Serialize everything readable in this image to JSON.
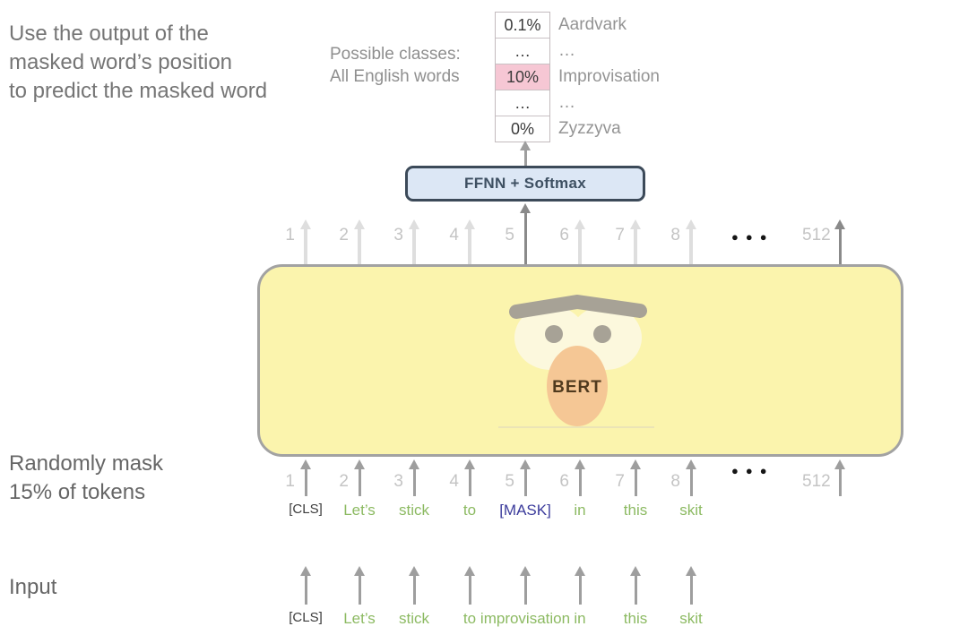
{
  "captions": {
    "output": [
      "Use the output of the",
      "masked word’s position",
      "to predict the masked word"
    ],
    "classes": [
      "Possible classes:",
      "All English words"
    ],
    "mask": [
      "Randomly mask",
      "15% of tokens"
    ],
    "input": "Input"
  },
  "classes_table": {
    "rows": [
      {
        "pct": "0.1%",
        "word": "Aardvark",
        "highlight": false
      },
      {
        "pct": "…",
        "word": "…",
        "highlight": false
      },
      {
        "pct": "10%",
        "word": "Improvisation",
        "highlight": true
      },
      {
        "pct": "…",
        "word": "…",
        "highlight": false
      },
      {
        "pct": "0%",
        "word": "Zyzzyva",
        "highlight": false
      }
    ]
  },
  "ffnn": {
    "label": "FFNN + Softmax"
  },
  "model": {
    "label": "BERT"
  },
  "positions": {
    "numbers": [
      "1",
      "2",
      "3",
      "4",
      "5",
      "6",
      "7",
      "8"
    ],
    "ellipsis": "●●●",
    "last": "512"
  },
  "masked_tokens": [
    "[CLS]",
    "Let’s",
    "stick",
    "to",
    "[MASK]",
    "in",
    "this",
    "skit"
  ],
  "input_tokens": [
    "[CLS]",
    "Let’s",
    "stick",
    "to",
    "improvisation",
    "in",
    "this",
    "skit"
  ],
  "colors": {
    "token_green": "#8cba62",
    "mask_navy": "#3c3c9c",
    "cls_dark": "#3c3c3c",
    "arrow_light": "#dedede",
    "arrow_mid": "#9e9e9e",
    "arrow_dark": "#8a8a8a",
    "highlight_pink": "#f6c7d4",
    "body_yellow": "#fbf4ad",
    "ffnn_blue": "#dce7f5"
  }
}
